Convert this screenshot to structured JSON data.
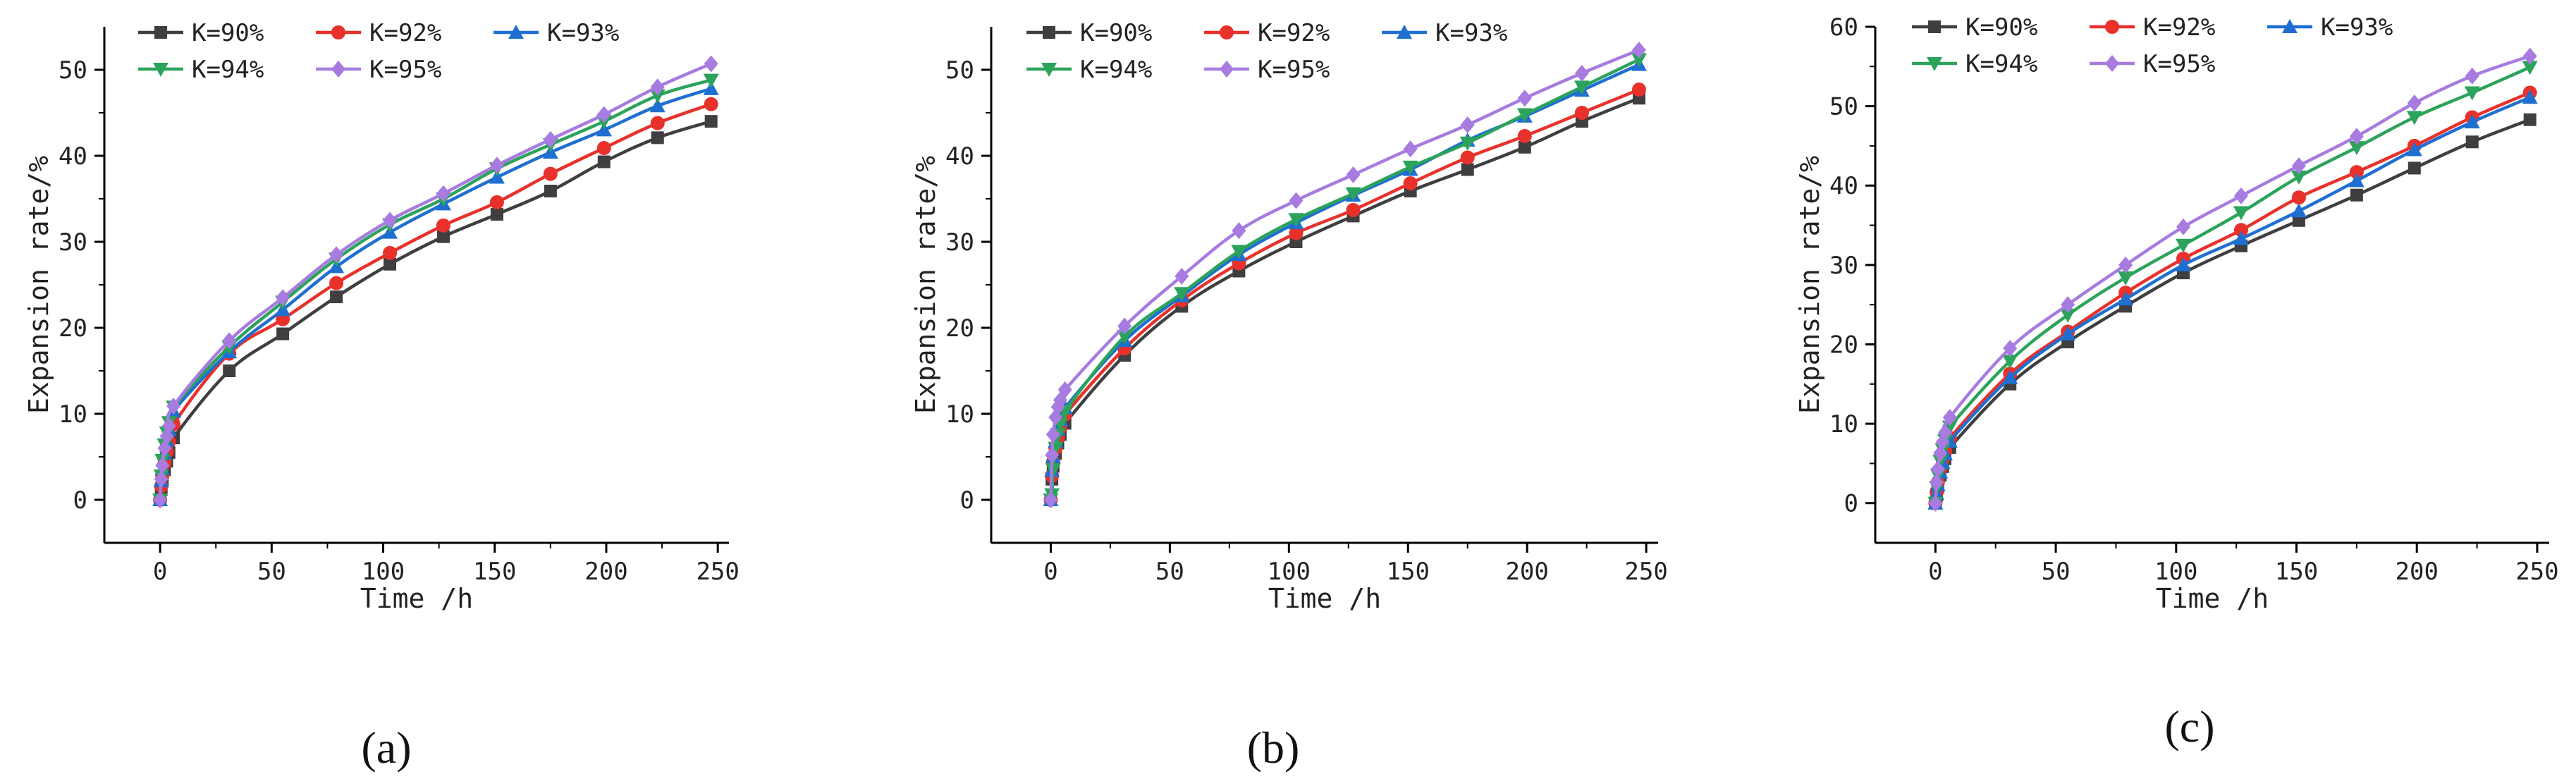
{
  "figure": {
    "panels": [
      "(a)",
      "(b)",
      "(c)"
    ],
    "panel_letters": [
      "a",
      "b",
      "c"
    ]
  },
  "chart_data": [
    {
      "type": "line",
      "panel": "(a)",
      "xlabel": "Time /h",
      "ylabel": "Expansion rate/%",
      "xlim": [
        -25,
        255
      ],
      "ylim": [
        -5,
        55
      ],
      "xticks": [
        0,
        50,
        100,
        150,
        200,
        250
      ],
      "yticks": [
        0,
        10,
        20,
        30,
        40,
        50
      ],
      "x": [
        0,
        0.5,
        1,
        2,
        3,
        4,
        6,
        31,
        55,
        79,
        103,
        127,
        151,
        175,
        199,
        223,
        247
      ],
      "series": [
        {
          "name": "K=90%",
          "color": "#3f3f3f",
          "marker": "square",
          "values": [
            0,
            1.2,
            2.2,
            3.5,
            4.5,
            5.5,
            7.2,
            15.0,
            19.3,
            23.6,
            27.4,
            30.6,
            33.2,
            35.9,
            39.3,
            42.1,
            44.0
          ]
        },
        {
          "name": "K=92%",
          "color": "#e8312b",
          "marker": "circle",
          "values": [
            0,
            1.6,
            2.8,
            4.3,
            5.6,
            6.8,
            8.8,
            17.0,
            21.0,
            25.2,
            28.7,
            31.9,
            34.6,
            37.9,
            40.9,
            43.8,
            46.0
          ]
        },
        {
          "name": "K=93%",
          "color": "#1f6fd1",
          "marker": "triangle-up",
          "values": [
            0,
            2.2,
            3.6,
            5.4,
            6.9,
            8.2,
            10.3,
            17.2,
            22.1,
            27.1,
            31.1,
            34.4,
            37.5,
            40.4,
            43.0,
            45.8,
            47.8
          ]
        },
        {
          "name": "K=94%",
          "color": "#2ca35b",
          "marker": "triangle-down",
          "values": [
            0,
            2.8,
            4.6,
            6.4,
            7.8,
            9.0,
            10.8,
            17.8,
            23.0,
            28.0,
            32.0,
            35.0,
            38.5,
            41.3,
            44.0,
            47.0,
            48.8
          ]
        },
        {
          "name": "K=95%",
          "color": "#a77be0",
          "marker": "diamond",
          "values": [
            0,
            2.4,
            4.0,
            6.0,
            7.4,
            8.6,
            10.9,
            18.5,
            23.5,
            28.5,
            32.5,
            35.6,
            38.9,
            41.9,
            44.8,
            48.0,
            50.7
          ]
        }
      ]
    },
    {
      "type": "line",
      "panel": "(b)",
      "xlabel": "Time /h",
      "ylabel": "Expansion rate/%",
      "xlim": [
        -25,
        255
      ],
      "ylim": [
        -5,
        55
      ],
      "xticks": [
        0,
        50,
        100,
        150,
        200,
        250
      ],
      "yticks": [
        0,
        10,
        20,
        30,
        40,
        50
      ],
      "x": [
        0,
        0.5,
        1,
        2,
        3,
        4,
        6,
        31,
        55,
        79,
        103,
        127,
        151,
        175,
        199,
        223,
        247
      ],
      "series": [
        {
          "name": "K=90%",
          "color": "#3f3f3f",
          "marker": "square",
          "values": [
            0,
            2.4,
            3.9,
            5.4,
            6.6,
            7.6,
            8.9,
            16.8,
            22.5,
            26.6,
            30.0,
            33.0,
            35.9,
            38.4,
            41.0,
            44.0,
            46.7
          ]
        },
        {
          "name": "K=92%",
          "color": "#e8312b",
          "marker": "circle",
          "values": [
            0,
            2.8,
            4.4,
            6.0,
            7.3,
            8.4,
            9.9,
            17.6,
            23.2,
            27.5,
            31.0,
            33.7,
            36.8,
            39.8,
            42.3,
            45.0,
            47.7
          ]
        },
        {
          "name": "K=93%",
          "color": "#1f6fd1",
          "marker": "triangle-up",
          "values": [
            0,
            3.4,
            5.0,
            6.8,
            8.2,
            9.3,
            10.7,
            18.5,
            23.7,
            28.5,
            32.2,
            35.4,
            38.4,
            41.8,
            44.6,
            47.6,
            50.6
          ]
        },
        {
          "name": "K=94%",
          "color": "#2ca35b",
          "marker": "triangle-down",
          "values": [
            0,
            0.6,
            3.5,
            6.0,
            7.6,
            8.8,
            10.3,
            19.0,
            24.0,
            28.9,
            32.6,
            35.6,
            38.7,
            41.5,
            44.8,
            48.0,
            51.2
          ]
        },
        {
          "name": "K=95%",
          "color": "#a77be0",
          "marker": "diamond",
          "values": [
            0,
            5.2,
            7.6,
            9.6,
            10.8,
            11.6,
            12.8,
            20.2,
            26.0,
            31.3,
            34.8,
            37.8,
            40.8,
            43.6,
            46.7,
            49.6,
            52.3
          ]
        }
      ]
    },
    {
      "type": "line",
      "panel": "(c)",
      "xlabel": "Time /h",
      "ylabel": "Expansion rate/%",
      "xlim": [
        -25,
        255
      ],
      "ylim": [
        -5,
        60
      ],
      "xticks": [
        0,
        50,
        100,
        150,
        200,
        250
      ],
      "yticks": [
        0,
        10,
        20,
        30,
        40,
        50,
        60
      ],
      "x": [
        0,
        0.5,
        1,
        2,
        3,
        4,
        6,
        31,
        55,
        79,
        103,
        127,
        151,
        175,
        199,
        223,
        247
      ],
      "series": [
        {
          "name": "K=90%",
          "color": "#3f3f3f",
          "marker": "square",
          "values": [
            0,
            1.0,
            2.0,
            3.5,
            4.6,
            5.6,
            7.0,
            15.0,
            20.3,
            24.8,
            29.0,
            32.4,
            35.6,
            38.8,
            42.2,
            45.5,
            48.3
          ]
        },
        {
          "name": "K=92%",
          "color": "#e8312b",
          "marker": "circle",
          "values": [
            0,
            1.4,
            2.6,
            4.2,
            5.5,
            6.6,
            8.2,
            16.3,
            21.6,
            26.5,
            30.8,
            34.4,
            38.5,
            41.7,
            45.0,
            48.6,
            51.7
          ]
        },
        {
          "name": "K=93%",
          "color": "#1f6fd1",
          "marker": "triangle-up",
          "values": [
            0,
            1.2,
            2.3,
            3.9,
            5.1,
            6.2,
            7.8,
            15.8,
            21.3,
            25.7,
            30.0,
            33.3,
            36.8,
            40.6,
            44.5,
            48.0,
            51.1
          ]
        },
        {
          "name": "K=94%",
          "color": "#2ca35b",
          "marker": "triangle-down",
          "values": [
            0,
            2.0,
            3.5,
            5.3,
            6.7,
            7.9,
            9.6,
            17.9,
            23.7,
            28.4,
            32.5,
            36.6,
            41.1,
            44.8,
            48.6,
            51.7,
            54.9
          ]
        },
        {
          "name": "K=95%",
          "color": "#a77be0",
          "marker": "diamond",
          "values": [
            0,
            2.6,
            4.3,
            6.3,
            7.7,
            8.9,
            10.8,
            19.5,
            25.0,
            30.0,
            34.8,
            38.7,
            42.5,
            46.2,
            50.4,
            53.8,
            56.3
          ]
        }
      ]
    }
  ]
}
